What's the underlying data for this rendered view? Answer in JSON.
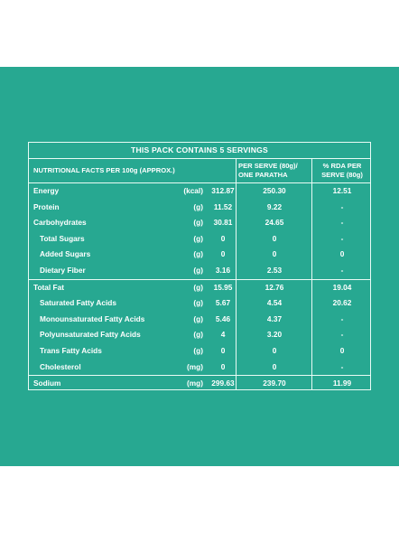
{
  "title": "THIS PACK CONTAINS 5 SERVINGS",
  "header": {
    "nutrition": "NUTRITIONAL FACTS  PER 100g (APPROX.)",
    "per_serve_line1": "PER SERVE (80g)/",
    "per_serve_line2": "ONE PARATHA",
    "rda_line1": "% RDA PER",
    "rda_line2": "SERVE (80g)"
  },
  "rows": [
    {
      "name": "Energy",
      "unit": "(kcal)",
      "value": "312.87",
      "serve": "250.30",
      "rda": "12.51",
      "indent": false
    },
    {
      "name": "Protein",
      "unit": "(g)",
      "value": "11.52",
      "serve": "9.22",
      "rda": "-",
      "indent": false
    },
    {
      "name": "Carbohydrates",
      "unit": "(g)",
      "value": "30.81",
      "serve": "24.65",
      "rda": "-",
      "indent": false
    },
    {
      "name": "Total Sugars",
      "unit": "(g)",
      "value": "0",
      "serve": "0",
      "rda": "-",
      "indent": true
    },
    {
      "name": "Added Sugars",
      "unit": "(g)",
      "value": "0",
      "serve": "0",
      "rda": "0",
      "indent": true
    },
    {
      "name": "Dietary Fiber",
      "unit": "(g)",
      "value": "3.16",
      "serve": "2.53",
      "rda": "-",
      "indent": true
    },
    {
      "name": "Total Fat",
      "unit": "(g)",
      "value": "15.95",
      "serve": "12.76",
      "rda": "19.04",
      "indent": false
    },
    {
      "name": "Saturated Fatty Acids",
      "unit": "(g)",
      "value": "5.67",
      "serve": "4.54",
      "rda": "20.62",
      "indent": true
    },
    {
      "name": "Monounsaturated Fatty Acids",
      "unit": "(g)",
      "value": "5.46",
      "serve": "4.37",
      "rda": "-",
      "indent": true
    },
    {
      "name": "Polyunsaturated Fatty Acids",
      "unit": "(g)",
      "value": "4",
      "serve": "3.20",
      "rda": "-",
      "indent": true
    },
    {
      "name": "Trans Fatty Acids",
      "unit": "(g)",
      "value": "0",
      "serve": "0",
      "rda": "0",
      "indent": true
    },
    {
      "name": "Cholesterol",
      "unit": "(mg)",
      "value": "0",
      "serve": "0",
      "rda": "-",
      "indent": true
    },
    {
      "name": "Sodium",
      "unit": "(mg)",
      "value": "299.63",
      "serve": "239.70",
      "rda": "11.99",
      "indent": false
    }
  ],
  "colors": {
    "panel": "#27a891",
    "lines": "#e9fbf5",
    "text": "#ffffff"
  }
}
